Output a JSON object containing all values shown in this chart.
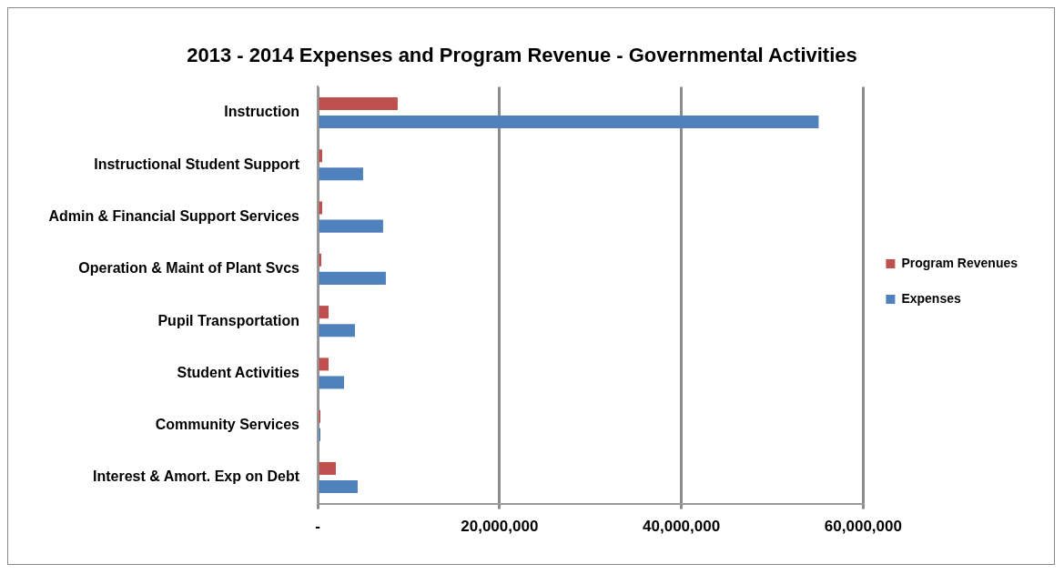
{
  "chart_data": {
    "type": "bar",
    "orientation": "horizontal",
    "title": "2013 - 2014 Expenses and Program Revenue - Governmental Activities",
    "categories": [
      "Instruction",
      "Instructional Student Support",
      "Admin & Financial Support Services",
      "Operation & Maint of Plant Svcs",
      "Pupil Transportation",
      "Student Activities",
      "Community Services",
      "Interest & Amort. Exp on Debt"
    ],
    "series": [
      {
        "name": "Program Revenues",
        "color": "#c0504d",
        "values": [
          8800000,
          500000,
          500000,
          400000,
          1200000,
          1200000,
          300000,
          2000000
        ]
      },
      {
        "name": "Expenses",
        "color": "#4f81bd",
        "values": [
          55100000,
          5000000,
          7200000,
          7500000,
          4100000,
          2900000,
          300000,
          4400000
        ]
      }
    ],
    "xlim": [
      0,
      60000000
    ],
    "xticks": [
      {
        "value": 0,
        "label": "-"
      },
      {
        "value": 20000000,
        "label": "20,000,000"
      },
      {
        "value": 40000000,
        "label": "40,000,000"
      },
      {
        "value": 60000000,
        "label": "60,000,000"
      }
    ],
    "grid": "x",
    "legend": "right"
  }
}
